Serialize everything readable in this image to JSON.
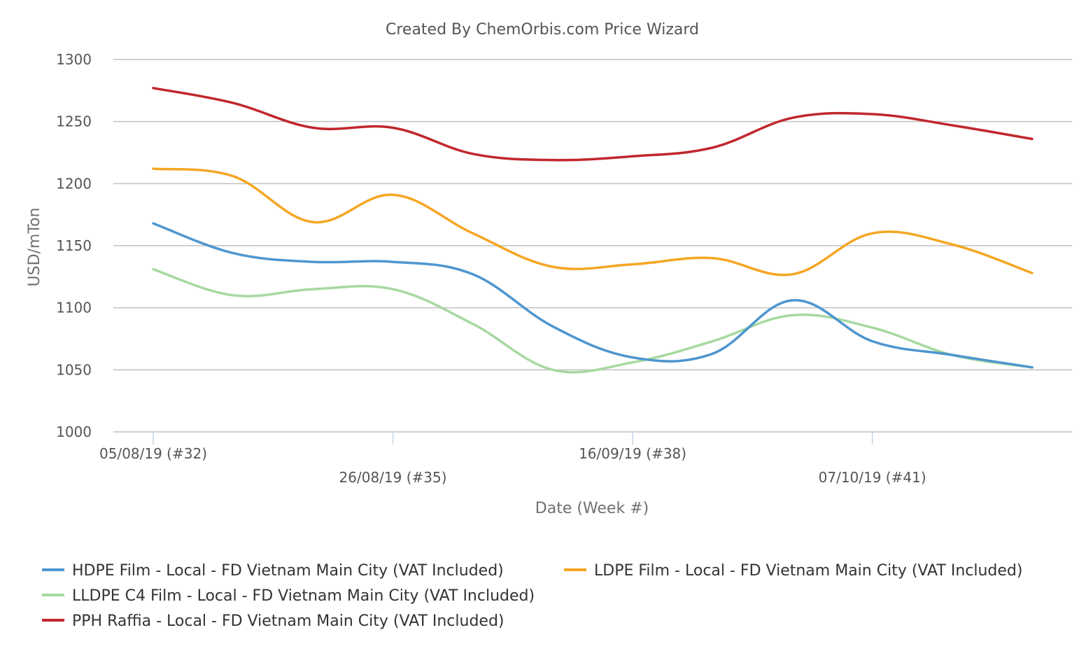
{
  "chart_data": {
    "type": "line",
    "title": "Created By ChemOrbis.com Price Wizard",
    "xlabel": "Date (Week #)",
    "ylabel": "USD/mTon",
    "ylim": [
      1000,
      1300
    ],
    "yticks": [
      1000,
      1050,
      1100,
      1150,
      1200,
      1250,
      1300
    ],
    "grid": true,
    "legend_position": "bottom",
    "x": [
      32,
      33,
      34,
      35,
      36,
      37,
      38,
      39,
      40,
      41,
      42,
      43
    ],
    "xtick_labels": [
      {
        "week": 32,
        "label": "05/08/19 (#32)"
      },
      {
        "week": 35,
        "label": "26/08/19 (#35)"
      },
      {
        "week": 38,
        "label": "16/09/19 (#38)"
      },
      {
        "week": 41,
        "label": "07/10/19 (#41)"
      }
    ],
    "series": [
      {
        "name": "HDPE Film - Local - FD Vietnam Main City (VAT Included)",
        "color": "#4e96cf",
        "values": [
          1168,
          1144,
          1137,
          1137,
          1127,
          1085,
          1060,
          1063,
          1106,
          1073,
          1062,
          1052
        ]
      },
      {
        "name": "LDPE Film - Local - FD Vietnam Main City (VAT Included)",
        "color": "#f5a623",
        "values": [
          1212,
          1206,
          1169,
          1191,
          1160,
          1133,
          1135,
          1140,
          1127,
          1160,
          1151,
          1128
        ]
      },
      {
        "name": "LLDPE C4 Film - Local - FD Vietnam Main City (VAT Included)",
        "color": "#a6d9a0",
        "values": [
          1131,
          1110,
          1115,
          1115,
          1087,
          1050,
          1056,
          1073,
          1094,
          1084,
          1062,
          1052
        ]
      },
      {
        "name": "PPH Raffia - Local - FD Vietnam Main City (VAT Included)",
        "color": "#c0272d",
        "values": [
          1277,
          1265,
          1245,
          1245,
          1224,
          1219,
          1222,
          1229,
          1253,
          1256,
          1247,
          1236
        ]
      }
    ]
  }
}
